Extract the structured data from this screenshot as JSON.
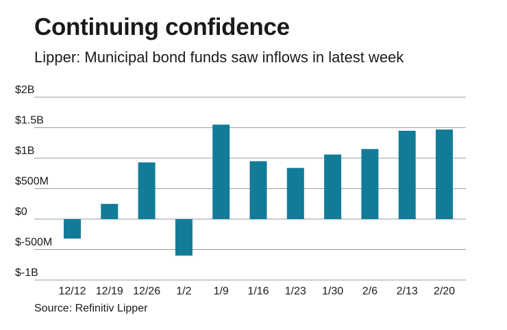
{
  "header": {
    "title": "Continuing confidence",
    "subtitle": "Lipper: Municipal bond funds saw inflows in latest week"
  },
  "footer": {
    "source": "Source: Refinitiv Lipper"
  },
  "colors": {
    "bar": "#127c98",
    "grid": "#9a9a9a"
  },
  "chart_data": {
    "type": "bar",
    "title": "Continuing confidence",
    "subtitle": "Lipper: Municipal bond funds saw inflows in latest week",
    "xlabel": "",
    "ylabel": "",
    "categories": [
      "12/12",
      "12/19",
      "12/26",
      "1/2",
      "1/9",
      "1/16",
      "1/23",
      "1/30",
      "2/6",
      "2/13",
      "2/20"
    ],
    "values": [
      -0.32,
      0.25,
      0.93,
      -0.6,
      1.55,
      0.95,
      0.84,
      1.06,
      1.15,
      1.45,
      1.47
    ],
    "value_unit": "billions of dollars",
    "ylim": [
      -1,
      2
    ],
    "yticks": [
      2,
      1.5,
      1,
      0.5,
      0,
      -0.5,
      -1
    ],
    "ytick_labels": [
      "$2B",
      "$1.5B",
      "$1B",
      "$500M",
      "$0",
      "$-500M",
      "$-1B"
    ],
    "grid": true,
    "legend": "none"
  }
}
